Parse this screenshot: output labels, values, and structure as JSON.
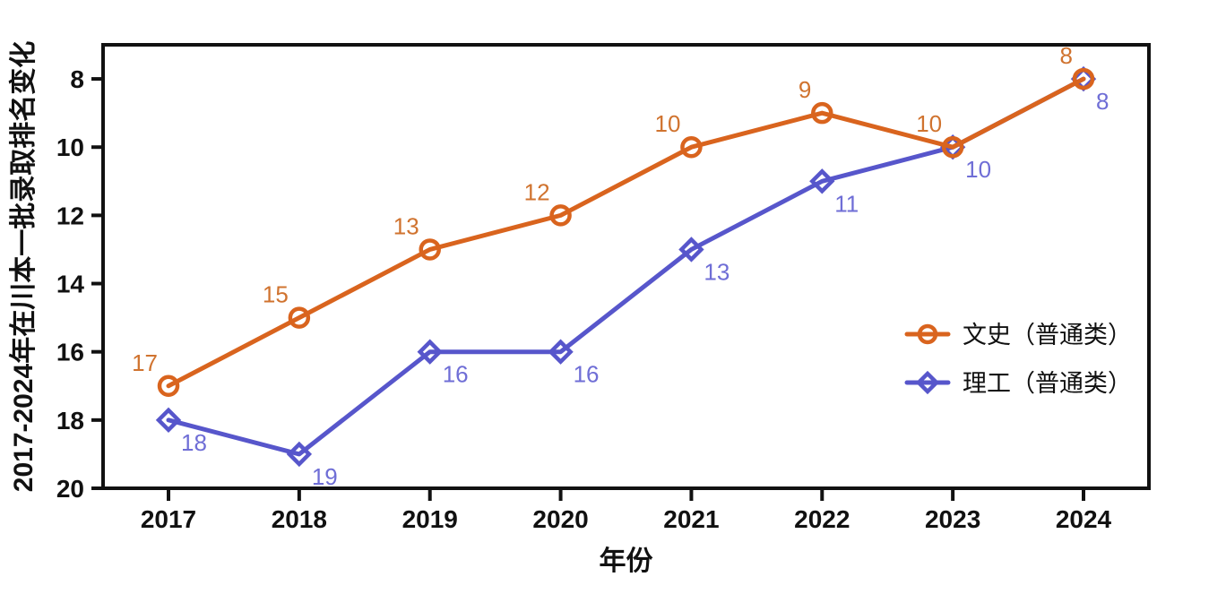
{
  "figure": {
    "background": "#ffffff",
    "axis_color": "#111111"
  },
  "chart_data": {
    "type": "line",
    "title": "",
    "xlabel": "年份",
    "ylabel": "2017-2024年在川本一批录取排名变化",
    "categories": [
      "2017",
      "2018",
      "2019",
      "2020",
      "2021",
      "2022",
      "2023",
      "2024"
    ],
    "y_ticks": [
      "8",
      "10",
      "12",
      "14",
      "16",
      "18",
      "20"
    ],
    "y_axis": {
      "inverted": true,
      "range_top": 7,
      "range_bottom": 20
    },
    "grid": false,
    "legend_position": "inside-right",
    "series": [
      {
        "id": "wenshi",
        "name": "文史（普通类）",
        "marker": "circle",
        "color": "#d9641e",
        "label_color": "#d0732f",
        "label_side": "above-left",
        "values": [
          17,
          15,
          13,
          12,
          10,
          9,
          10,
          8
        ]
      },
      {
        "id": "ligong",
        "name": "理工（普通类）",
        "marker": "diamond",
        "color": "#5756cb",
        "label_color": "#6f6ed6",
        "label_side": "below-right",
        "values": [
          18,
          19,
          16,
          16,
          13,
          11,
          10,
          8
        ]
      }
    ]
  }
}
